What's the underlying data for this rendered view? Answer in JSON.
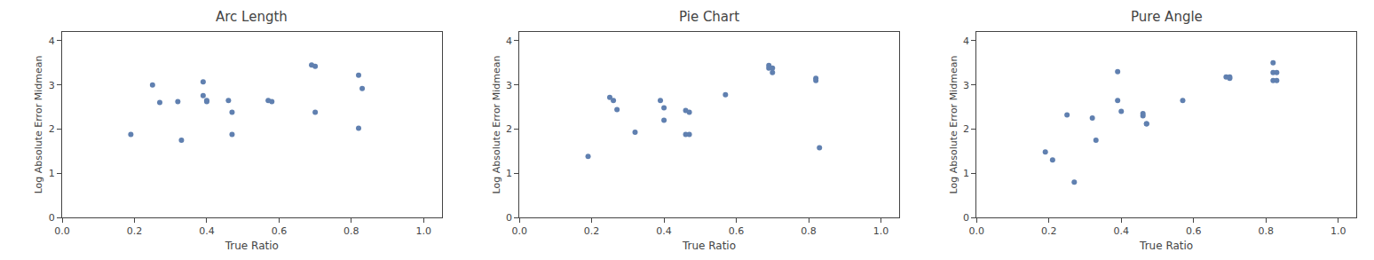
{
  "chart_data": [
    {
      "type": "scatter",
      "title": "Arc Length",
      "xlabel": "True Ratio",
      "ylabel": "Log Absolute Error Midmean",
      "color": "#6080b0",
      "grid": false,
      "xlim": [
        0.0,
        1.05
      ],
      "ylim": [
        0.0,
        4.2
      ],
      "xticks": [
        {
          "value": 0.0,
          "label": "0.0"
        },
        0.2,
        0.4,
        0.6,
        0.8,
        {
          "value": 1.0,
          "label": "1.0"
        }
      ],
      "yticks": [
        0,
        1,
        2,
        3,
        4
      ],
      "x": [
        0.19,
        0.25,
        0.27,
        0.32,
        0.33,
        0.39,
        0.39,
        0.4,
        0.4,
        0.46,
        0.47,
        0.47,
        0.57,
        0.58,
        0.69,
        0.7,
        0.7,
        0.82,
        0.82,
        0.83
      ],
      "values": [
        1.88,
        3.0,
        2.6,
        2.62,
        1.75,
        3.07,
        2.76,
        2.65,
        2.62,
        2.65,
        1.88,
        2.38,
        2.65,
        2.62,
        3.45,
        3.42,
        2.38,
        3.22,
        2.02,
        2.92
      ]
    },
    {
      "type": "scatter",
      "title": "Pie Chart",
      "xlabel": "True Ratio",
      "ylabel": "Log Absolute Error Midmean",
      "color": "#6080b0",
      "grid": false,
      "xlim": [
        0.0,
        1.05
      ],
      "ylim": [
        0.0,
        4.2
      ],
      "xticks": [
        {
          "value": 0.0,
          "label": "0.0"
        },
        0.2,
        0.4,
        0.6,
        0.8,
        {
          "value": 1.0,
          "label": "1.0"
        }
      ],
      "yticks": [
        0,
        1,
        2,
        3,
        4
      ],
      "x": [
        0.19,
        0.25,
        0.26,
        0.27,
        0.32,
        0.39,
        0.4,
        0.4,
        0.46,
        0.46,
        0.47,
        0.47,
        0.57,
        0.69,
        0.69,
        0.7,
        0.7,
        0.82,
        0.82,
        0.83
      ],
      "values": [
        1.38,
        2.72,
        2.65,
        2.44,
        1.93,
        2.65,
        2.48,
        2.2,
        2.42,
        1.88,
        2.38,
        1.88,
        2.78,
        3.44,
        3.38,
        3.38,
        3.28,
        3.15,
        3.1,
        1.58
      ]
    },
    {
      "type": "scatter",
      "title": "Pure Angle",
      "xlabel": "True Ratio",
      "ylabel": "Log Absolute Error Midmean",
      "color": "#6080b0",
      "grid": false,
      "xlim": [
        0.0,
        1.05
      ],
      "ylim": [
        0.0,
        4.2
      ],
      "xticks": [
        {
          "value": 0.0,
          "label": "0.0"
        },
        0.2,
        0.4,
        0.6,
        0.8,
        {
          "value": 1.0,
          "label": "1.0"
        }
      ],
      "yticks": [
        0,
        1,
        2,
        3,
        4
      ],
      "x": [
        0.19,
        0.21,
        0.25,
        0.27,
        0.32,
        0.33,
        0.39,
        0.39,
        0.4,
        0.46,
        0.46,
        0.47,
        0.47,
        0.57,
        0.69,
        0.7,
        0.7,
        0.82,
        0.82,
        0.82,
        0.83,
        0.83
      ],
      "values": [
        1.48,
        1.3,
        2.32,
        0.8,
        2.25,
        1.75,
        3.3,
        2.65,
        2.4,
        2.35,
        2.3,
        2.12,
        2.12,
        2.65,
        3.18,
        3.18,
        3.15,
        3.5,
        3.28,
        3.1,
        3.28,
        3.1
      ]
    }
  ]
}
